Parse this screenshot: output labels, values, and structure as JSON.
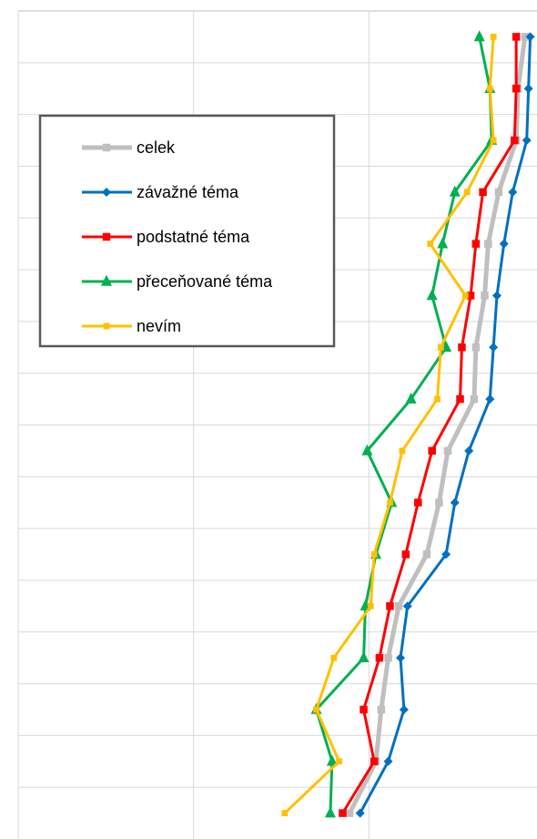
{
  "chart_data": {
    "type": "line",
    "orientation": "horizontal",
    "categories": [
      null,
      null,
      null,
      null,
      null,
      null,
      null,
      null,
      null,
      null,
      null,
      null,
      null,
      null,
      null,
      null
    ],
    "xlim": [
      0,
      3
    ],
    "xticks": [
      0,
      1,
      2,
      3
    ],
    "grid": true,
    "legend": "upper left",
    "series": [
      {
        "name": "celek",
        "color": "#bfbfbf",
        "marker": "square",
        "values": [
          2.89,
          2.85,
          2.84,
          2.74,
          2.68,
          2.66,
          2.61,
          2.6,
          2.45,
          2.4,
          2.33,
          2.17,
          2.11,
          2.07,
          2.04,
          1.89
        ]
      },
      {
        "name": "závažné téma",
        "color": "#0070c0",
        "marker": "diamond",
        "values": [
          2.92,
          2.91,
          2.9,
          2.82,
          2.77,
          2.73,
          2.71,
          2.69,
          2.57,
          2.49,
          2.44,
          2.22,
          2.18,
          2.2,
          2.11,
          1.95
        ]
      },
      {
        "name": "podstatné téma",
        "color": "#ff0000",
        "marker": "square",
        "values": [
          2.84,
          2.84,
          2.83,
          2.65,
          2.61,
          2.58,
          2.53,
          2.52,
          2.36,
          2.28,
          2.21,
          2.12,
          2.06,
          1.97,
          2.03,
          1.85
        ]
      },
      {
        "name": "přeceňované téma",
        "color": "#00b050",
        "marker": "triangle",
        "values": [
          2.63,
          2.69,
          2.7,
          2.49,
          2.42,
          2.36,
          2.44,
          2.24,
          1.99,
          2.13,
          2.04,
          1.98,
          1.97,
          1.7,
          1.79,
          1.78
        ]
      },
      {
        "name": "nevím",
        "color": "#ffc000",
        "marker": "square",
        "values": [
          2.71,
          2.69,
          2.71,
          2.56,
          2.35,
          2.55,
          2.41,
          2.39,
          2.19,
          2.12,
          2.03,
          2.01,
          1.8,
          1.7,
          1.83,
          1.52
        ]
      }
    ]
  }
}
